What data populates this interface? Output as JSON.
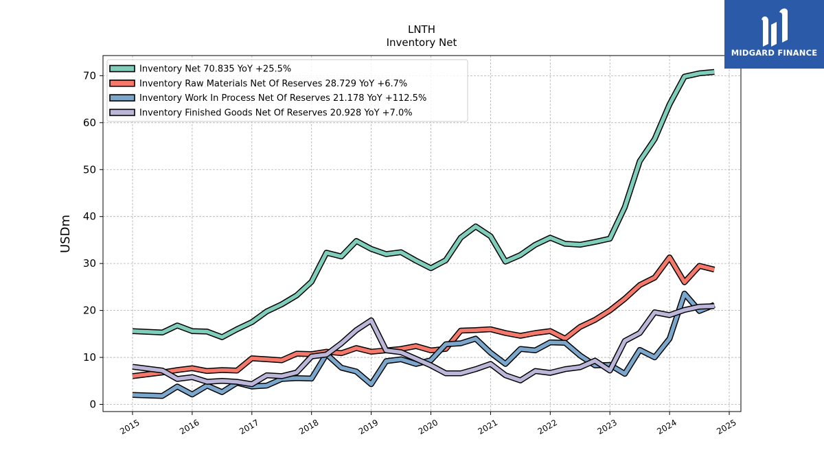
{
  "chart_data": {
    "type": "line",
    "title": "LNTH",
    "subtitle": "Inventory Net",
    "ylabel": "USDm",
    "xlabel": "",
    "xlim": [
      2014.5,
      2025.25
    ],
    "ylim": [
      -1.5,
      74.5
    ],
    "x_ticks": [
      "2015",
      "2016",
      "2017",
      "2018",
      "2019",
      "2020",
      "2021",
      "2022",
      "2023",
      "2024",
      "2025"
    ],
    "y_ticks": [
      0,
      10,
      20,
      30,
      40,
      50,
      60,
      70
    ],
    "grid": true,
    "legend_position": "top-left",
    "x": [
      2015.0,
      2015.5,
      2015.75,
      2016.0,
      2016.25,
      2016.5,
      2016.75,
      2017.0,
      2017.25,
      2017.5,
      2017.75,
      2018.0,
      2018.25,
      2018.5,
      2018.75,
      2019.0,
      2019.25,
      2019.5,
      2019.75,
      2020.0,
      2020.25,
      2020.5,
      2020.75,
      2021.0,
      2021.25,
      2021.5,
      2021.75,
      2022.0,
      2022.25,
      2022.5,
      2022.75,
      2023.0,
      2023.25,
      2023.5,
      2023.75,
      2024.0,
      2024.25,
      2024.5,
      2024.75
    ],
    "series": [
      {
        "name": "Inventory Net",
        "legend_label": "Inventory Net  70.835 YoY +25.5%",
        "color": "#7fcdbb",
        "values": [
          15.6,
          15.3,
          16.8,
          15.6,
          15.5,
          14.3,
          16.0,
          17.5,
          19.8,
          21.3,
          23.2,
          26.1,
          32.3,
          31.5,
          34.8,
          33.1,
          32.0,
          32.4,
          30.6,
          29.0,
          30.7,
          35.5,
          37.9,
          35.8,
          30.4,
          31.8,
          34.0,
          35.5,
          34.2,
          34.0,
          34.6,
          35.3,
          42.0,
          51.8,
          56.5,
          63.9,
          69.8,
          70.5,
          70.8
        ]
      },
      {
        "name": "Inventory Raw Materials Net Of Reserves",
        "legend_label": "Inventory Raw Materials Net Of Reserves  28.729 YoY +6.7%",
        "color": "#f4796b",
        "values": [
          6.0,
          6.8,
          7.3,
          7.7,
          7.1,
          7.3,
          7.2,
          9.8,
          9.6,
          9.4,
          10.8,
          10.7,
          11.2,
          10.9,
          12.0,
          11.2,
          11.5,
          11.8,
          12.4,
          11.5,
          11.8,
          15.7,
          15.8,
          16.0,
          15.2,
          14.6,
          15.2,
          15.6,
          14.0,
          16.5,
          18.0,
          20.0,
          22.5,
          25.4,
          27.0,
          31.3,
          26.0,
          29.5,
          28.7
        ]
      },
      {
        "name": "Inventory Work In Process Net Of Reserves",
        "legend_label": "Inventory Work In Process Net Of Reserves  21.178 YoY +112.5%",
        "color": "#7ba7cc",
        "values": [
          2.0,
          1.8,
          3.8,
          2.1,
          4.0,
          2.6,
          4.6,
          3.8,
          4.0,
          5.4,
          5.6,
          5.5,
          10.7,
          7.8,
          7.0,
          4.3,
          9.2,
          9.6,
          8.6,
          9.4,
          12.8,
          13.0,
          14.0,
          11.0,
          8.6,
          11.8,
          11.5,
          13.2,
          13.1,
          10.4,
          8.3,
          8.4,
          6.5,
          11.6,
          10.0,
          14.0,
          23.6,
          19.9,
          21.2
        ]
      },
      {
        "name": "Inventory Finished Goods Net Of Reserves",
        "legend_label": "Inventory Finished Goods Net Of Reserves  20.928 YoY +7.0%",
        "color": "#bcb6d9",
        "values": [
          8.0,
          7.2,
          5.4,
          5.8,
          4.8,
          5.0,
          4.8,
          4.3,
          6.2,
          6.0,
          6.8,
          10.2,
          10.6,
          13.0,
          15.8,
          17.9,
          11.5,
          11.1,
          9.7,
          8.3,
          6.6,
          6.6,
          7.5,
          8.6,
          6.2,
          5.1,
          7.1,
          6.7,
          7.5,
          7.9,
          9.3,
          7.2,
          13.5,
          15.2,
          19.6,
          19.0,
          20.1,
          20.8,
          20.9
        ]
      }
    ]
  },
  "branding": {
    "logo_text": "MIDGARD FINANCE",
    "logo_bg": "#2b5aa8"
  }
}
